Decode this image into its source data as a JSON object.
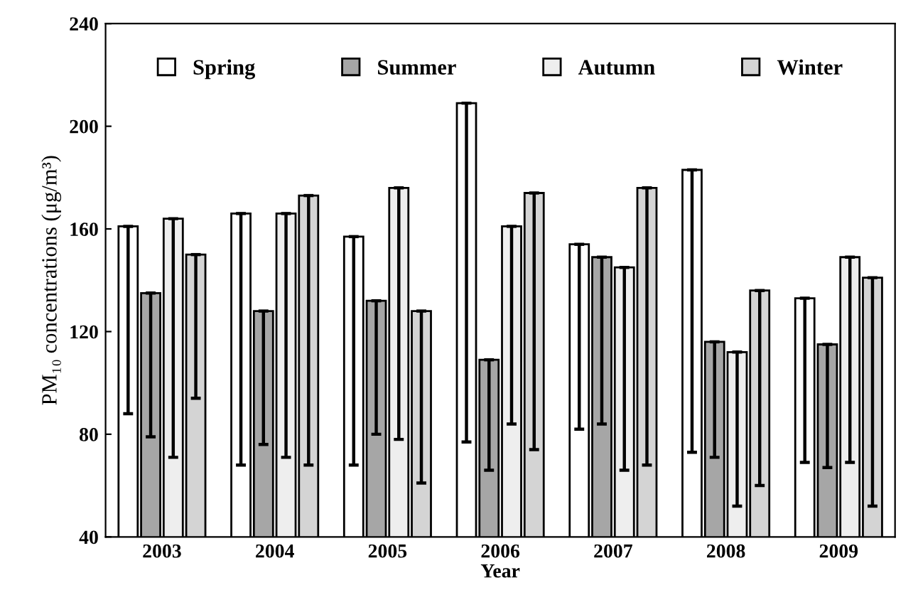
{
  "chart_data": {
    "type": "bar",
    "xlabel": "Year",
    "ylabel": "PM₁₀ concentrations (μg/m³)",
    "categories": [
      "2003",
      "2004",
      "2005",
      "2006",
      "2007",
      "2008",
      "2009"
    ],
    "series": [
      {
        "name": "Spring",
        "color": "#ffffff",
        "values": [
          161,
          166,
          157,
          209,
          154,
          183,
          133
        ],
        "errors": [
          [
            88,
            161
          ],
          [
            68,
            166
          ],
          [
            68,
            157
          ],
          [
            77,
            209
          ],
          [
            82,
            154
          ],
          [
            73,
            183
          ],
          [
            69,
            133
          ]
        ]
      },
      {
        "name": "Summer",
        "color": "#a6a6a6",
        "values": [
          135,
          128,
          132,
          109,
          149,
          116,
          115
        ],
        "errors": [
          [
            79,
            135
          ],
          [
            76,
            128
          ],
          [
            80,
            132
          ],
          [
            66,
            109
          ],
          [
            84,
            149
          ],
          [
            71,
            116
          ],
          [
            67,
            115
          ]
        ]
      },
      {
        "name": "Autumn",
        "color": "#eeeeee",
        "values": [
          164,
          166,
          176,
          161,
          145,
          112,
          149
        ],
        "errors": [
          [
            71,
            164
          ],
          [
            71,
            166
          ],
          [
            78,
            176
          ],
          [
            84,
            161
          ],
          [
            66,
            145
          ],
          [
            52,
            112
          ],
          [
            69,
            149
          ]
        ]
      },
      {
        "name": "Winter",
        "color": "#d4d4d4",
        "values": [
          150,
          173,
          128,
          174,
          176,
          136,
          141
        ],
        "errors": [
          [
            94,
            150
          ],
          [
            68,
            173
          ],
          [
            61,
            128
          ],
          [
            74,
            174
          ],
          [
            68,
            176
          ],
          [
            60,
            136
          ],
          [
            52,
            141
          ]
        ]
      }
    ],
    "ylim": [
      40,
      240
    ],
    "yticks": [
      40,
      80,
      120,
      160,
      200,
      240
    ],
    "grid": false,
    "legend": "top"
  }
}
